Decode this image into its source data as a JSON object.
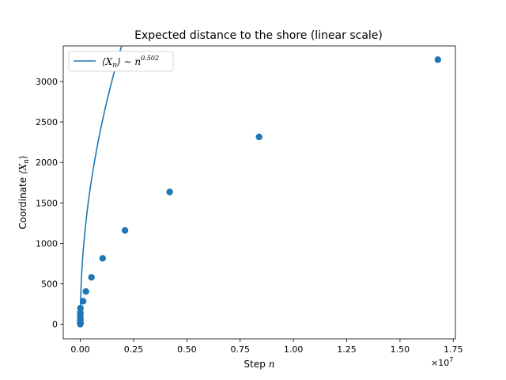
{
  "chart_data": {
    "type": "line",
    "title": "Expected distance to the shore (linear scale)",
    "xlabel": "Step",
    "xlabel_symbol": "n",
    "ylabel": "Coordinate",
    "ylabel_symbol": "⟨X",
    "ylabel_subscript": "n",
    "ylabel_close": "⟩",
    "x_multiplier": "×10",
    "x_multiplier_exp": "7",
    "xlim": [
      -0.08,
      1.76
    ],
    "ylim": [
      -180,
      3440
    ],
    "xticks": [
      0.0,
      0.25,
      0.5,
      0.75,
      1.0,
      1.25,
      1.5,
      1.75
    ],
    "xtick_labels": [
      "0.00",
      "0.25",
      "0.50",
      "0.75",
      "1.00",
      "1.25",
      "1.50",
      "1.75"
    ],
    "yticks": [
      0,
      500,
      1000,
      1500,
      2000,
      2500,
      3000
    ],
    "ytick_labels": [
      "0",
      "500",
      "1000",
      "1500",
      "2000",
      "2500",
      "3000"
    ],
    "grid": false,
    "legend": {
      "placement": "top-left",
      "label_prefix": "⟨X",
      "label_sub": "n",
      "label_mid": "⟩ ∼ n",
      "label_exp": "0.502"
    },
    "series": [
      {
        "name": "⟨X_n⟩ ∼ n^0.502",
        "color": "#1f77b4",
        "fit": {
          "a": 2.4,
          "exponent": 0.502
        },
        "points": [
          {
            "x": 0.0,
            "y": 1
          },
          {
            "x": 2e-07,
            "y": 5
          },
          {
            "x": 4e-07,
            "y": 8
          },
          {
            "x": 8e-07,
            "y": 11
          },
          {
            "x": 1.6e-06,
            "y": 16
          },
          {
            "x": 3.3e-06,
            "y": 22
          },
          {
            "x": 6.6e-06,
            "y": 32
          },
          {
            "x": 1.3e-05,
            "y": 45
          },
          {
            "x": 2.6e-05,
            "y": 64
          },
          {
            "x": 5.2e-05,
            "y": 90
          },
          {
            "x": 0.000105,
            "y": 128
          },
          {
            "x": 0.00021,
            "y": 145
          },
          {
            "x": 0.00065,
            "y": 200
          },
          {
            "x": 0.0131,
            "y": 285
          },
          {
            "x": 0.0262,
            "y": 405
          },
          {
            "x": 0.0524,
            "y": 580
          },
          {
            "x": 0.1049,
            "y": 815
          },
          {
            "x": 0.2097,
            "y": 1160
          },
          {
            "x": 0.4194,
            "y": 1635
          },
          {
            "x": 0.8389,
            "y": 2315
          },
          {
            "x": 1.6777,
            "y": 3270
          }
        ]
      }
    ]
  }
}
